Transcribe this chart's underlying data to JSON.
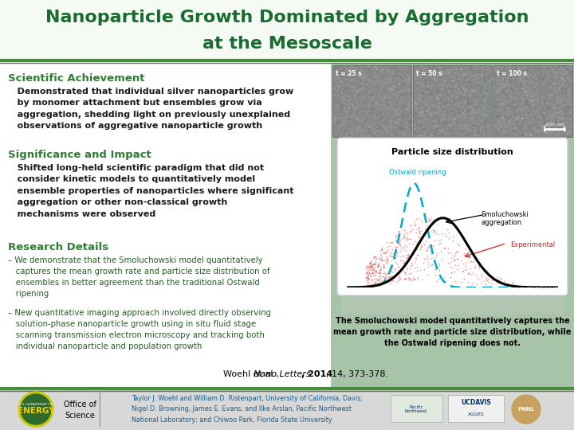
{
  "title_line1": "Nanoparticle Growth Dominated by Aggregation",
  "title_line2": "at the Mesoscale",
  "title_color": "#1a6b2e",
  "title_fontsize": 16,
  "bg_color": "#ffffff",
  "divider_color": "#4a8c3f",
  "section_heading_color": "#2e7d32",
  "section_heading_fontsize": 9.5,
  "body_text_color": "#1a1a1a",
  "body_fontsize": 8.0,
  "scientific_achievement_heading": "Scientific Achievement",
  "significance_heading": "Significance and Impact",
  "research_heading": "Research Details",
  "citation_text": "Woehl et al., ",
  "citation_italic": "Nano Letters",
  "citation_bold": ", 2014",
  "citation_end": ", 14, 373-378.",
  "caption": "The Smoluchowski model quantitatively captures the\nmean growth rate and particle size distribution, while\nthe Ostwald ripening does not.",
  "footer_text": "Taylor J. Woehl and William D. Ristenpart, University of California, Davis;\nNigel D. Browning, James E. Evans, and Ilke Arslan, Pacific Northwest\nNational Laboratory; and Chiwoo Park, Florida State University",
  "footer_bg": "#d8d8d8",
  "footer_text_color": "#1a5e8a",
  "right_panel_bg": "#a8c4a8",
  "graph_bg": "#ffffff",
  "micro_img_color": "#787878",
  "scale_bar_color": "#ffffff",
  "ostwald_color": "#00aacc",
  "smoluchowski_color": "#000000",
  "experimental_color": "#cc2222",
  "graph_border_color": "#333333",
  "graph_title_color": "#000000",
  "caption_bg": "#ffffff"
}
